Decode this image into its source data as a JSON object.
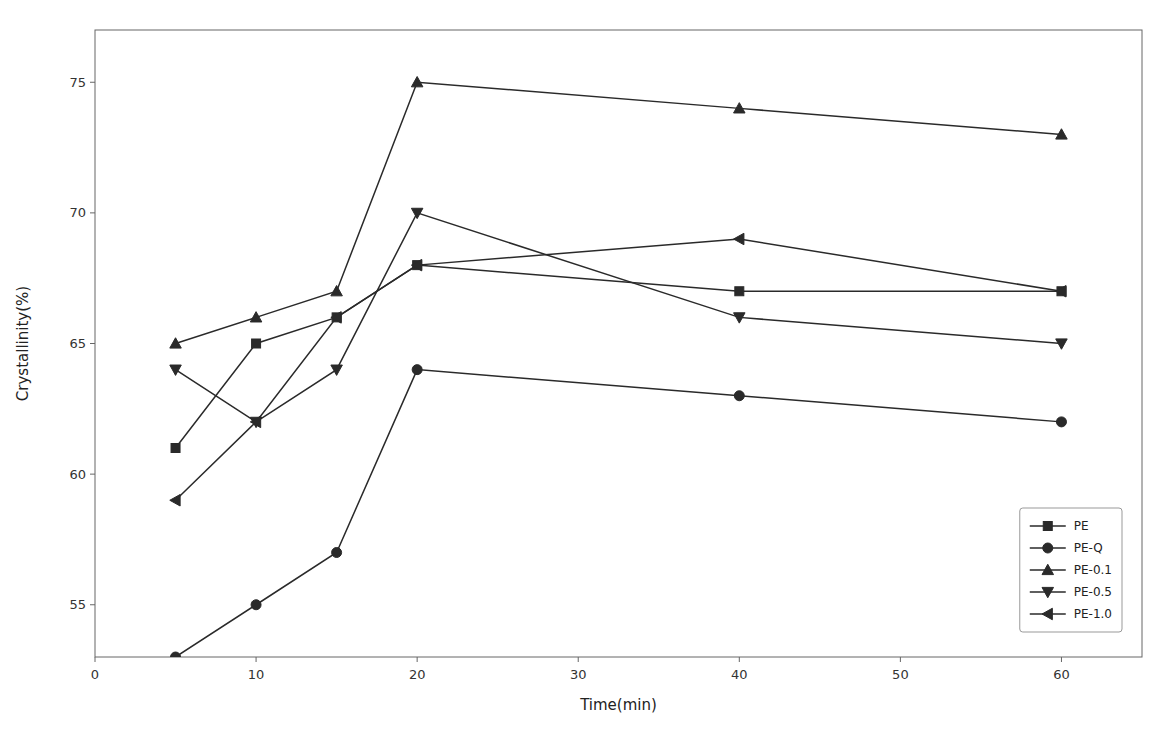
{
  "chart_data": {
    "type": "line",
    "xlabel": "Time(min)",
    "ylabel": "Crystallinity(%)",
    "xlim": [
      0,
      65
    ],
    "ylim": [
      53,
      77
    ],
    "xticks": [
      0,
      10,
      20,
      30,
      40,
      50,
      60
    ],
    "yticks": [
      55,
      60,
      65,
      70,
      75
    ],
    "x": [
      5,
      10,
      15,
      20,
      40,
      60
    ],
    "series": [
      {
        "name": "PE",
        "color": "#2a2a2a",
        "marker": "square",
        "values": [
          61.0,
          65.0,
          66.0,
          68.0,
          67.0,
          67.0
        ]
      },
      {
        "name": "PE-Q",
        "color": "#2a2a2a",
        "marker": "circle",
        "values": [
          53.0,
          55.0,
          57.0,
          64.0,
          63.0,
          62.0
        ]
      },
      {
        "name": "PE-0.1",
        "color": "#2a2a2a",
        "marker": "triangle-up",
        "values": [
          65.0,
          66.0,
          67.0,
          75.0,
          74.0,
          73.0
        ]
      },
      {
        "name": "PE-0.5",
        "color": "#2a2a2a",
        "marker": "triangle-down",
        "values": [
          64.0,
          62.0,
          64.0,
          70.0,
          66.0,
          65.0
        ]
      },
      {
        "name": "PE-1.0",
        "color": "#2a2a2a",
        "marker": "triangle-left",
        "values": [
          59.0,
          62.0,
          66.0,
          68.0,
          69.0,
          67.0
        ]
      }
    ],
    "legend": "lower right",
    "grid": false
  }
}
